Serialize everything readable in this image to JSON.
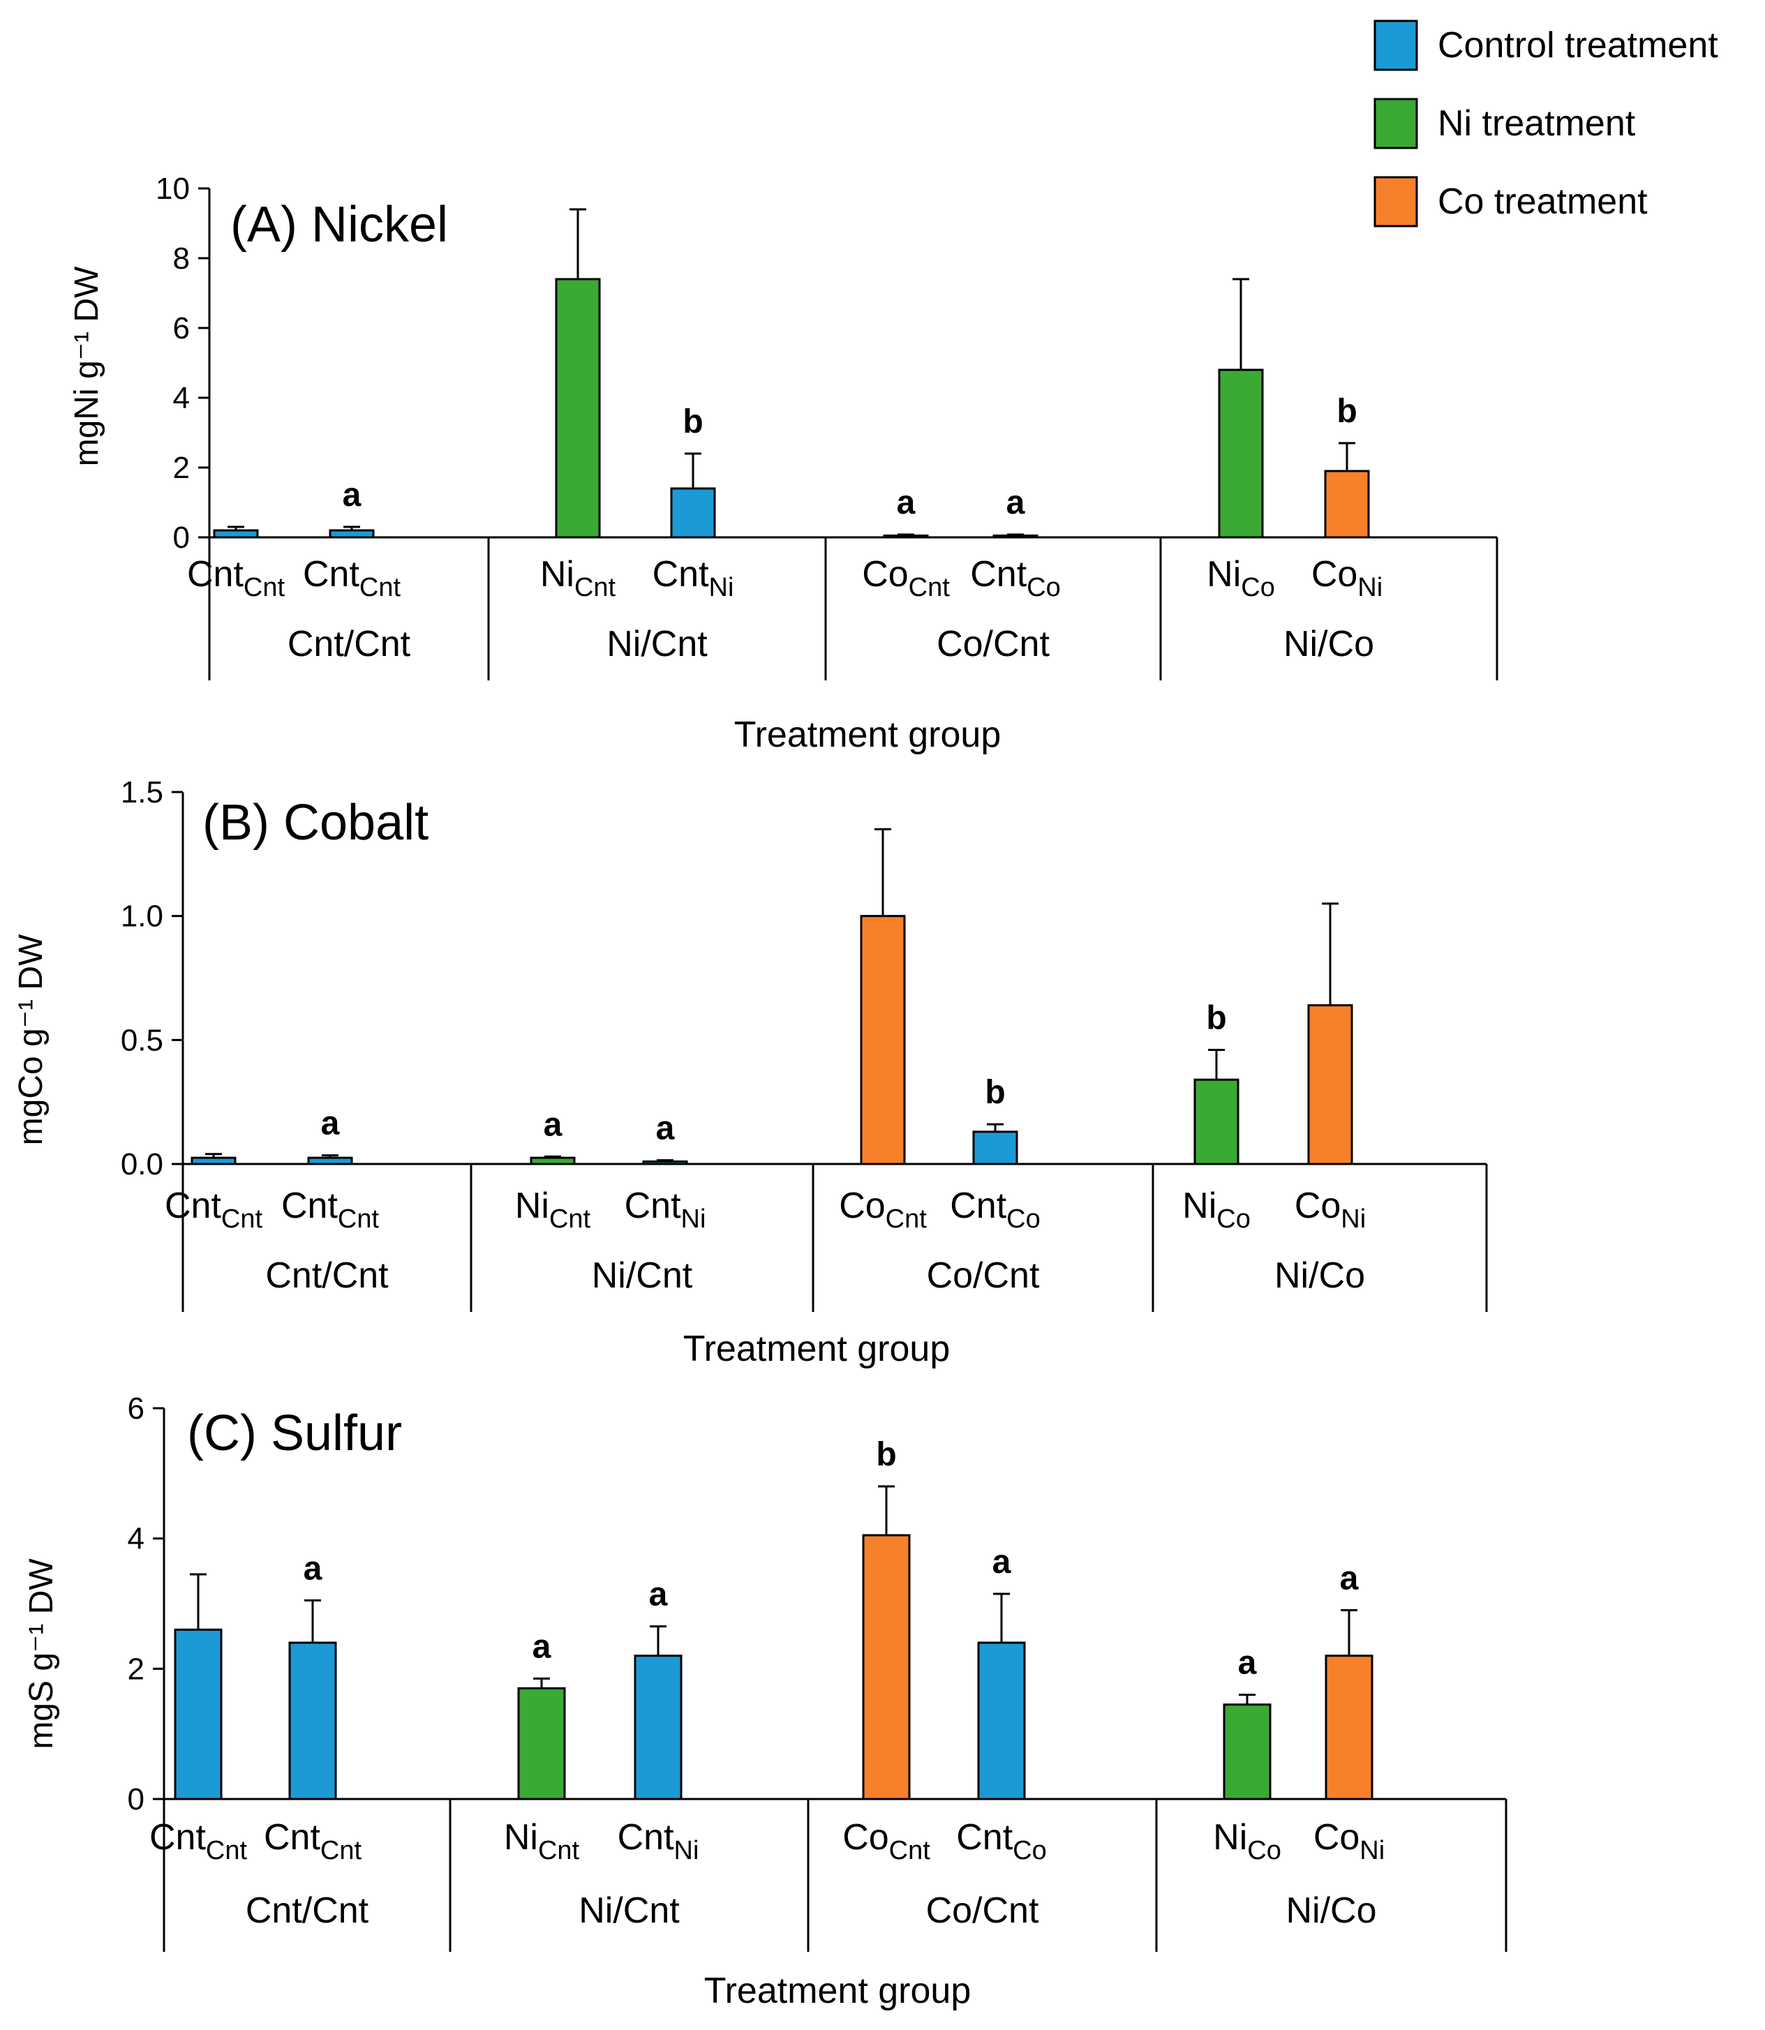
{
  "legend": [
    {
      "key": "control",
      "label": "Control treatment",
      "color": "#1c9ad6"
    },
    {
      "key": "ni",
      "label": "Ni treatment",
      "color": "#3aaa35"
    },
    {
      "key": "co",
      "label": "Co treatment",
      "color": "#f7802a"
    }
  ],
  "chart_data": [
    {
      "type": "bar",
      "title": "(A) Nickel",
      "ylabel": "mgNi g⁻¹ DW",
      "xlabel": "Treatment group",
      "ylim": [
        0,
        10
      ],
      "yticks": [
        "0",
        "2",
        "4",
        "6",
        "8",
        "10"
      ],
      "tick_values": [
        0,
        2,
        4,
        6,
        8,
        10
      ],
      "groups": [
        "Cnt/Cnt",
        "Ni/Cnt",
        "Co/Cnt",
        "Ni/Co"
      ],
      "bars": [
        {
          "group": 0,
          "label": "Cnt",
          "sub": "Cnt",
          "treatment": "control",
          "value": 0.2,
          "error": 0.1,
          "sig": ""
        },
        {
          "group": 0,
          "label": "Cnt",
          "sub": "Cnt",
          "treatment": "control",
          "value": 0.2,
          "error": 0.1,
          "sig": "a"
        },
        {
          "group": 1,
          "label": "Ni",
          "sub": "Cnt",
          "treatment": "ni",
          "value": 7.4,
          "error": 2.0,
          "sig": ""
        },
        {
          "group": 1,
          "label": "Cnt",
          "sub": "Ni",
          "treatment": "control",
          "value": 1.4,
          "error": 1.0,
          "sig": "b"
        },
        {
          "group": 2,
          "label": "Co",
          "sub": "Cnt",
          "treatment": "co",
          "value": 0.05,
          "error": 0.03,
          "sig": "a"
        },
        {
          "group": 2,
          "label": "Cnt",
          "sub": "Co",
          "treatment": "control",
          "value": 0.05,
          "error": 0.03,
          "sig": "a"
        },
        {
          "group": 3,
          "label": "Ni",
          "sub": "Co",
          "treatment": "ni",
          "value": 4.8,
          "error": 2.6,
          "sig": ""
        },
        {
          "group": 3,
          "label": "Co",
          "sub": "Ni",
          "treatment": "co",
          "value": 1.9,
          "error": 0.8,
          "sig": "b"
        }
      ]
    },
    {
      "type": "bar",
      "title": "(B) Cobalt",
      "ylabel": "mgCo g⁻¹ DW",
      "xlabel": "Treatment group",
      "ylim": [
        0,
        1.5
      ],
      "yticks": [
        "0.0",
        "0.5",
        "1.0",
        "1.5"
      ],
      "tick_values": [
        0,
        0.5,
        1.0,
        1.5
      ],
      "groups": [
        "Cnt/Cnt",
        "Ni/Cnt",
        "Co/Cnt",
        "Ni/Co"
      ],
      "bars": [
        {
          "group": 0,
          "label": "Cnt",
          "sub": "Cnt",
          "treatment": "control",
          "value": 0.025,
          "error": 0.015,
          "sig": ""
        },
        {
          "group": 0,
          "label": "Cnt",
          "sub": "Cnt",
          "treatment": "control",
          "value": 0.025,
          "error": 0.01,
          "sig": "a"
        },
        {
          "group": 1,
          "label": "Ni",
          "sub": "Cnt",
          "treatment": "ni",
          "value": 0.025,
          "error": 0.005,
          "sig": "a"
        },
        {
          "group": 1,
          "label": "Cnt",
          "sub": "Ni",
          "treatment": "control",
          "value": 0.01,
          "error": 0.005,
          "sig": "a"
        },
        {
          "group": 2,
          "label": "Co",
          "sub": "Cnt",
          "treatment": "co",
          "value": 1.0,
          "error": 0.35,
          "sig": ""
        },
        {
          "group": 2,
          "label": "Cnt",
          "sub": "Co",
          "treatment": "control",
          "value": 0.13,
          "error": 0.03,
          "sig": "b"
        },
        {
          "group": 3,
          "label": "Ni",
          "sub": "Co",
          "treatment": "ni",
          "value": 0.34,
          "error": 0.12,
          "sig": "b"
        },
        {
          "group": 3,
          "label": "Co",
          "sub": "Ni",
          "treatment": "co",
          "value": 0.64,
          "error": 0.41,
          "sig": ""
        }
      ]
    },
    {
      "type": "bar",
      "title": "(C) Sulfur",
      "ylabel": "mgS g⁻¹ DW",
      "xlabel": "Treatment group",
      "ylim": [
        0,
        6
      ],
      "yticks": [
        "0",
        "2",
        "4",
        "6"
      ],
      "tick_values": [
        0,
        2,
        4,
        6
      ],
      "groups": [
        "Cnt/Cnt",
        "Ni/Cnt",
        "Co/Cnt",
        "Ni/Co"
      ],
      "bars": [
        {
          "group": 0,
          "label": "Cnt",
          "sub": "Cnt",
          "treatment": "control",
          "value": 2.6,
          "error": 0.85,
          "sig": ""
        },
        {
          "group": 0,
          "label": "Cnt",
          "sub": "Cnt",
          "treatment": "control",
          "value": 2.4,
          "error": 0.65,
          "sig": "a"
        },
        {
          "group": 1,
          "label": "Ni",
          "sub": "Cnt",
          "treatment": "ni",
          "value": 1.7,
          "error": 0.15,
          "sig": "a"
        },
        {
          "group": 1,
          "label": "Cnt",
          "sub": "Ni",
          "treatment": "control",
          "value": 2.2,
          "error": 0.45,
          "sig": "a"
        },
        {
          "group": 2,
          "label": "Co",
          "sub": "Cnt",
          "treatment": "co",
          "value": 4.05,
          "error": 0.75,
          "sig": "b"
        },
        {
          "group": 2,
          "label": "Cnt",
          "sub": "Co",
          "treatment": "control",
          "value": 2.4,
          "error": 0.75,
          "sig": "a"
        },
        {
          "group": 3,
          "label": "Ni",
          "sub": "Co",
          "treatment": "ni",
          "value": 1.45,
          "error": 0.15,
          "sig": "a"
        },
        {
          "group": 3,
          "label": "Co",
          "sub": "Ni",
          "treatment": "co",
          "value": 2.2,
          "error": 0.7,
          "sig": "a"
        }
      ]
    }
  ]
}
